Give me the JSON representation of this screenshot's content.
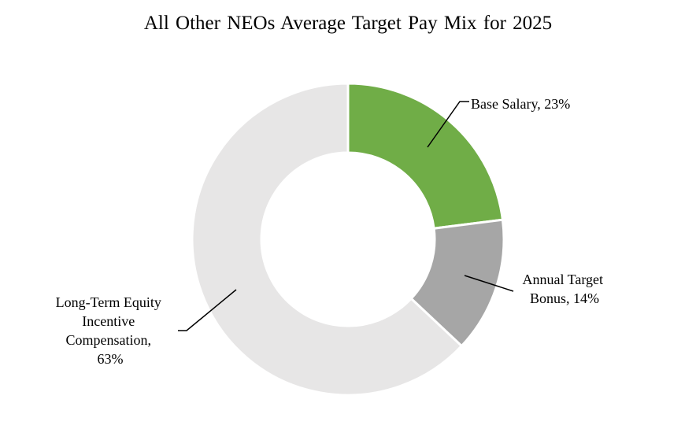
{
  "chart_data": {
    "type": "pie",
    "title": "All Other NEOs Average Target Pay Mix for 2025",
    "slices": [
      {
        "label": "Base Salary, 23%",
        "value": 23,
        "color": "#70ad47"
      },
      {
        "label": "Annual Target Bonus, 14%",
        "value": 14,
        "color": "#a6a6a6"
      },
      {
        "label": "Long-Term Equity Incentive Compensation, 63%",
        "value": 63,
        "color": "#e7e6e6"
      }
    ],
    "donut": true,
    "legend": "none"
  },
  "labels": {
    "base": [
      "Base Salary, 23%"
    ],
    "bonus": [
      "Annual Target",
      "Bonus, 14%"
    ],
    "equity": [
      "Long-Term Equity",
      "Incentive",
      "Compensation,",
      "63%"
    ]
  }
}
